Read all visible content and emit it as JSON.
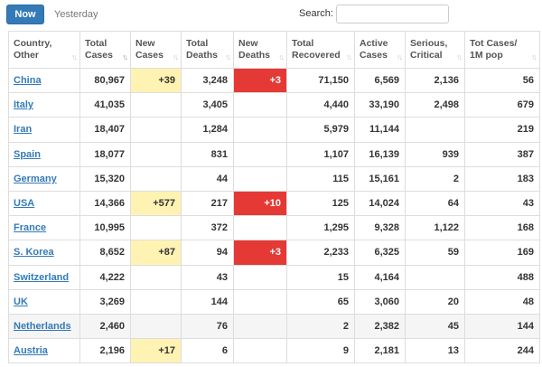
{
  "tabs": [
    {
      "label": "Now",
      "active": true
    },
    {
      "label": "Yesterday",
      "active": false
    }
  ],
  "search": {
    "label": "Search:",
    "value": "",
    "placeholder": ""
  },
  "colors": {
    "accent": "#337ab7",
    "new_cases_highlight": "#fff3b3",
    "new_deaths_highlight": "#e53935"
  },
  "table": {
    "columns": [
      {
        "label": "Country,\nOther"
      },
      {
        "label": "Total\nCases"
      },
      {
        "label": "New\nCases"
      },
      {
        "label": "Total\nDeaths"
      },
      {
        "label": "New\nDeaths"
      },
      {
        "label": "Total\nRecovered"
      },
      {
        "label": "Active\nCases"
      },
      {
        "label": "Serious,\nCritical"
      },
      {
        "label": "Tot Cases/\n1M pop"
      }
    ],
    "sorted_column": "Total Cases",
    "rows": [
      {
        "country": "China",
        "total_cases": "80,967",
        "new_cases": "+39",
        "total_deaths": "3,248",
        "new_deaths": "+3",
        "total_recovered": "71,150",
        "active_cases": "6,569",
        "serious_critical": "2,136",
        "per_million": "56"
      },
      {
        "country": "Italy",
        "total_cases": "41,035",
        "new_cases": "",
        "total_deaths": "3,405",
        "new_deaths": "",
        "total_recovered": "4,440",
        "active_cases": "33,190",
        "serious_critical": "2,498",
        "per_million": "679"
      },
      {
        "country": "Iran",
        "total_cases": "18,407",
        "new_cases": "",
        "total_deaths": "1,284",
        "new_deaths": "",
        "total_recovered": "5,979",
        "active_cases": "11,144",
        "serious_critical": "",
        "per_million": "219"
      },
      {
        "country": "Spain",
        "total_cases": "18,077",
        "new_cases": "",
        "total_deaths": "831",
        "new_deaths": "",
        "total_recovered": "1,107",
        "active_cases": "16,139",
        "serious_critical": "939",
        "per_million": "387"
      },
      {
        "country": "Germany",
        "total_cases": "15,320",
        "new_cases": "",
        "total_deaths": "44",
        "new_deaths": "",
        "total_recovered": "115",
        "active_cases": "15,161",
        "serious_critical": "2",
        "per_million": "183"
      },
      {
        "country": "USA",
        "total_cases": "14,366",
        "new_cases": "+577",
        "total_deaths": "217",
        "new_deaths": "+10",
        "total_recovered": "125",
        "active_cases": "14,024",
        "serious_critical": "64",
        "per_million": "43"
      },
      {
        "country": "France",
        "total_cases": "10,995",
        "new_cases": "",
        "total_deaths": "372",
        "new_deaths": "",
        "total_recovered": "1,295",
        "active_cases": "9,328",
        "serious_critical": "1,122",
        "per_million": "168"
      },
      {
        "country": "S. Korea",
        "total_cases": "8,652",
        "new_cases": "+87",
        "total_deaths": "94",
        "new_deaths": "+3",
        "total_recovered": "2,233",
        "active_cases": "6,325",
        "serious_critical": "59",
        "per_million": "169"
      },
      {
        "country": "Switzerland",
        "total_cases": "4,222",
        "new_cases": "",
        "total_deaths": "43",
        "new_deaths": "",
        "total_recovered": "15",
        "active_cases": "4,164",
        "serious_critical": "",
        "per_million": "488"
      },
      {
        "country": "UK",
        "total_cases": "3,269",
        "new_cases": "",
        "total_deaths": "144",
        "new_deaths": "",
        "total_recovered": "65",
        "active_cases": "3,060",
        "serious_critical": "20",
        "per_million": "48"
      },
      {
        "country": "Netherlands",
        "total_cases": "2,460",
        "new_cases": "",
        "total_deaths": "76",
        "new_deaths": "",
        "total_recovered": "2",
        "active_cases": "2,382",
        "serious_critical": "45",
        "per_million": "144"
      },
      {
        "country": "Austria",
        "total_cases": "2,196",
        "new_cases": "+17",
        "total_deaths": "6",
        "new_deaths": "",
        "total_recovered": "9",
        "active_cases": "2,181",
        "serious_critical": "13",
        "per_million": "244"
      }
    ]
  }
}
